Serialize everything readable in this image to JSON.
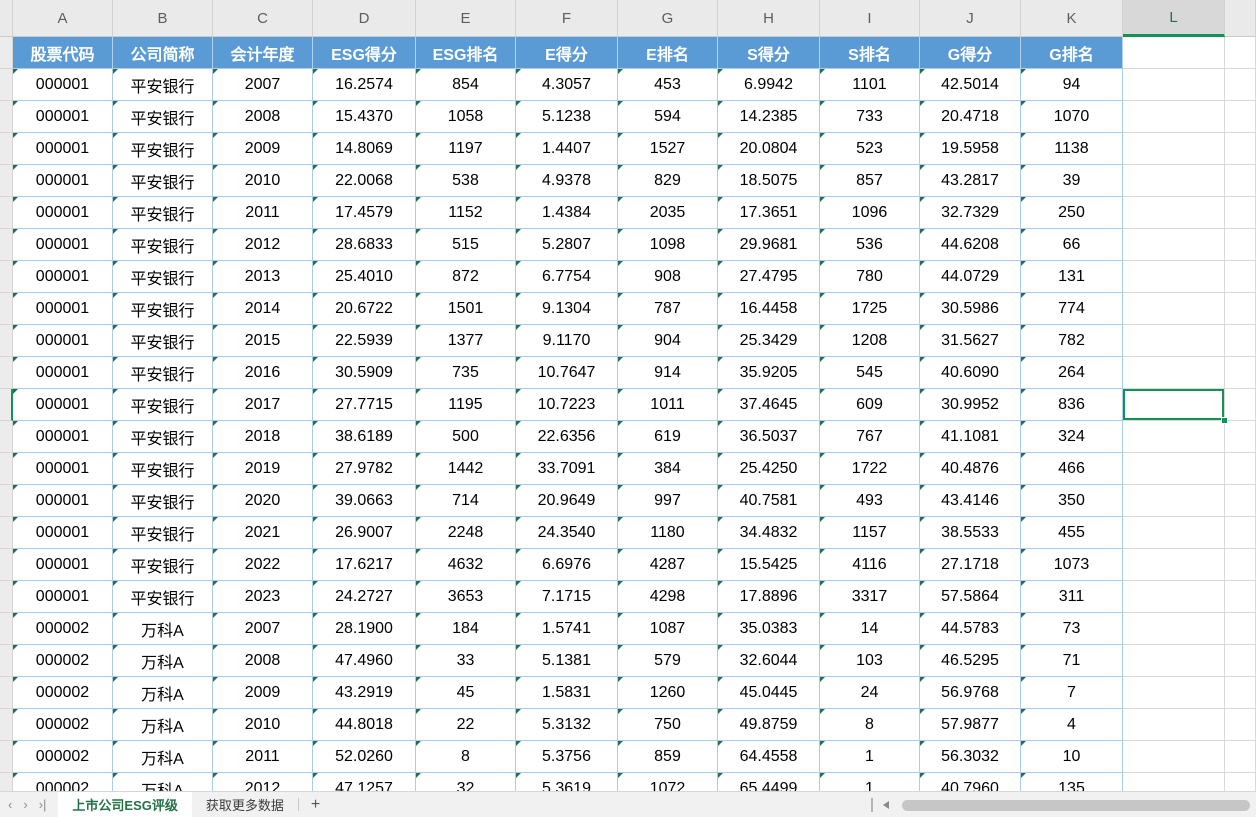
{
  "column_letters": [
    "A",
    "B",
    "C",
    "D",
    "E",
    "F",
    "G",
    "H",
    "I",
    "J",
    "K",
    "L"
  ],
  "selected_column": "L",
  "table": {
    "headers": [
      "股票代码",
      "公司简称",
      "会计年度",
      "ESG得分",
      "ESG排名",
      "E得分",
      "E排名",
      "S得分",
      "S排名",
      "G得分",
      "G排名"
    ],
    "rows": [
      [
        "000001",
        "平安银行",
        "2007",
        "16.2574",
        "854",
        "4.3057",
        "453",
        "6.9942",
        "1101",
        "42.5014",
        "94"
      ],
      [
        "000001",
        "平安银行",
        "2008",
        "15.4370",
        "1058",
        "5.1238",
        "594",
        "14.2385",
        "733",
        "20.4718",
        "1070"
      ],
      [
        "000001",
        "平安银行",
        "2009",
        "14.8069",
        "1197",
        "1.4407",
        "1527",
        "20.0804",
        "523",
        "19.5958",
        "1138"
      ],
      [
        "000001",
        "平安银行",
        "2010",
        "22.0068",
        "538",
        "4.9378",
        "829",
        "18.5075",
        "857",
        "43.2817",
        "39"
      ],
      [
        "000001",
        "平安银行",
        "2011",
        "17.4579",
        "1152",
        "1.4384",
        "2035",
        "17.3651",
        "1096",
        "32.7329",
        "250"
      ],
      [
        "000001",
        "平安银行",
        "2012",
        "28.6833",
        "515",
        "5.2807",
        "1098",
        "29.9681",
        "536",
        "44.6208",
        "66"
      ],
      [
        "000001",
        "平安银行",
        "2013",
        "25.4010",
        "872",
        "6.7754",
        "908",
        "27.4795",
        "780",
        "44.0729",
        "131"
      ],
      [
        "000001",
        "平安银行",
        "2014",
        "20.6722",
        "1501",
        "9.1304",
        "787",
        "16.4458",
        "1725",
        "30.5986",
        "774"
      ],
      [
        "000001",
        "平安银行",
        "2015",
        "22.5939",
        "1377",
        "9.1170",
        "904",
        "25.3429",
        "1208",
        "31.5627",
        "782"
      ],
      [
        "000001",
        "平安银行",
        "2016",
        "30.5909",
        "735",
        "10.7647",
        "914",
        "35.9205",
        "545",
        "40.6090",
        "264"
      ],
      [
        "000001",
        "平安银行",
        "2017",
        "27.7715",
        "1195",
        "10.7223",
        "1011",
        "37.4645",
        "609",
        "30.9952",
        "836"
      ],
      [
        "000001",
        "平安银行",
        "2018",
        "38.6189",
        "500",
        "22.6356",
        "619",
        "36.5037",
        "767",
        "41.1081",
        "324"
      ],
      [
        "000001",
        "平安银行",
        "2019",
        "27.9782",
        "1442",
        "33.7091",
        "384",
        "25.4250",
        "1722",
        "40.4876",
        "466"
      ],
      [
        "000001",
        "平安银行",
        "2020",
        "39.0663",
        "714",
        "20.9649",
        "997",
        "40.7581",
        "493",
        "43.4146",
        "350"
      ],
      [
        "000001",
        "平安银行",
        "2021",
        "26.9007",
        "2248",
        "24.3540",
        "1180",
        "34.4832",
        "1157",
        "38.5533",
        "455"
      ],
      [
        "000001",
        "平安银行",
        "2022",
        "17.6217",
        "4632",
        "6.6976",
        "4287",
        "15.5425",
        "4116",
        "27.1718",
        "1073"
      ],
      [
        "000001",
        "平安银行",
        "2023",
        "24.2727",
        "3653",
        "7.1715",
        "4298",
        "17.8896",
        "3317",
        "57.5864",
        "311"
      ],
      [
        "000002",
        "万科A",
        "2007",
        "28.1900",
        "184",
        "1.5741",
        "1087",
        "35.0383",
        "14",
        "44.5783",
        "73"
      ],
      [
        "000002",
        "万科A",
        "2008",
        "47.4960",
        "33",
        "5.1381",
        "579",
        "32.6044",
        "103",
        "46.5295",
        "71"
      ],
      [
        "000002",
        "万科A",
        "2009",
        "43.2919",
        "45",
        "1.5831",
        "1260",
        "45.0445",
        "24",
        "56.9768",
        "7"
      ],
      [
        "000002",
        "万科A",
        "2010",
        "44.8018",
        "22",
        "5.3132",
        "750",
        "49.8759",
        "8",
        "57.9877",
        "4"
      ],
      [
        "000002",
        "万科A",
        "2011",
        "52.0260",
        "8",
        "5.3756",
        "859",
        "64.4558",
        "1",
        "56.3032",
        "10"
      ],
      [
        "000002",
        "万科A",
        "2012",
        "47.1257",
        "32",
        "5.3619",
        "1072",
        "65.4499",
        "1",
        "40.7960",
        "135"
      ]
    ]
  },
  "selection": {
    "row_index": 10,
    "column": "L"
  },
  "sheet_tabs": {
    "active": "上市公司ESG评级",
    "inactive": "获取更多数据",
    "add_button": "+"
  },
  "nav": {
    "prev_glyph": "‹",
    "next_glyph": "›",
    "last_glyph": "›|"
  },
  "colors": {
    "table_header_fill": "#5B9BD5",
    "table_border_blue": "#A9CCE9",
    "selection_green": "#149154",
    "error_triangle_green": "#217346",
    "active_tab_text": "#217346"
  }
}
